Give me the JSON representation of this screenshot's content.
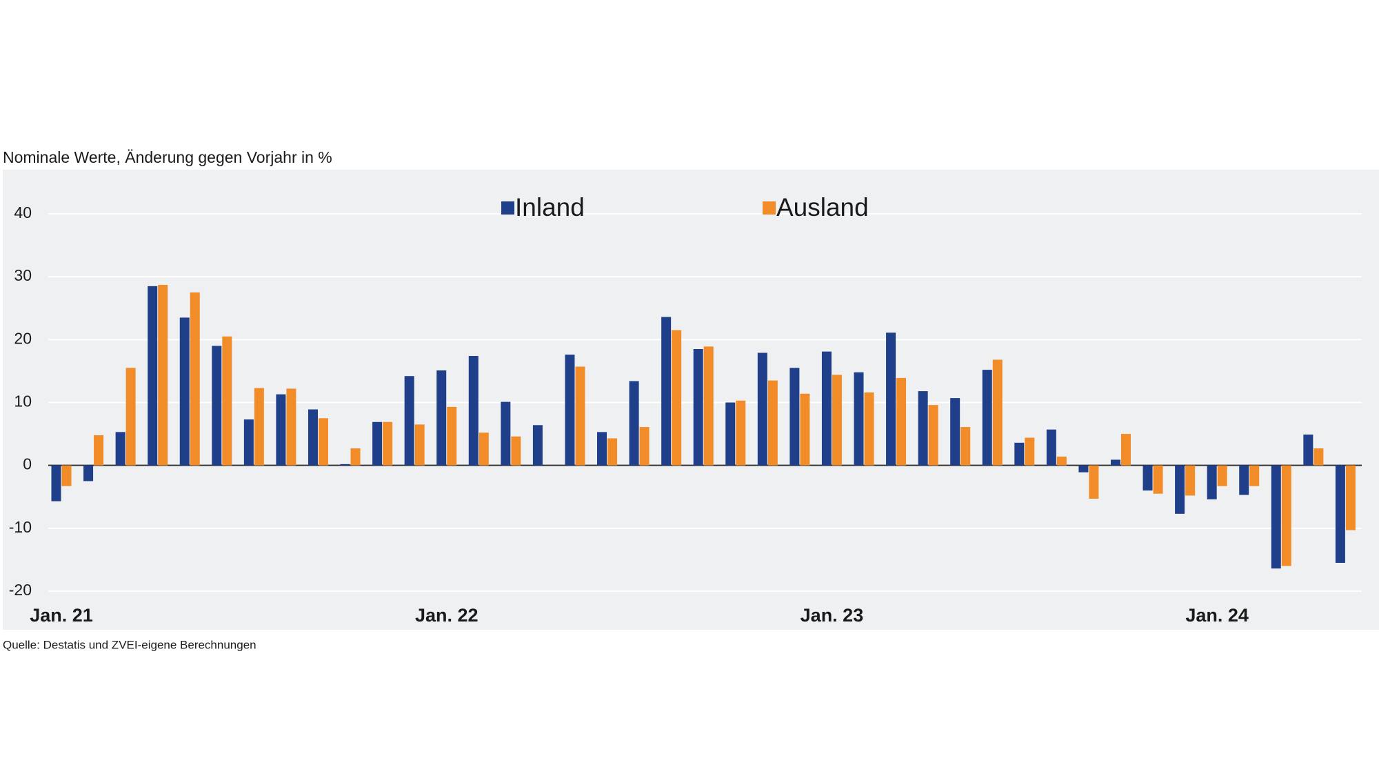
{
  "chart_data": {
    "type": "bar",
    "subtitle": "Nominale Werte, Änderung gegen Vorjahr in %",
    "source": "Quelle: Destatis und ZVEI-eigene Berechnungen",
    "categories": [
      "Jan. 21",
      null,
      null,
      null,
      null,
      null,
      null,
      null,
      null,
      null,
      null,
      null,
      "Jan. 22",
      null,
      null,
      null,
      null,
      null,
      null,
      null,
      null,
      null,
      null,
      null,
      "Jan. 23",
      null,
      null,
      null,
      null,
      null,
      null,
      null,
      null,
      null,
      null,
      null,
      "Jan. 24",
      null,
      null,
      null,
      null
    ],
    "series": [
      {
        "name": "Inland",
        "color": "#1f3f8a",
        "values": [
          -5.7,
          -2.5,
          5.3,
          28.5,
          23.5,
          19,
          7.3,
          11.3,
          8.9,
          0.2,
          6.9,
          14.2,
          15.1,
          17.4,
          10.1,
          6.4,
          17.6,
          5.3,
          13.4,
          23.6,
          18.5,
          10,
          17.9,
          15.5,
          18.1,
          14.8,
          21.1,
          11.8,
          10.7,
          15.2,
          3.6,
          5.7,
          -1.1,
          0.9,
          -4,
          -7.7,
          -5.4,
          -4.7,
          -16.4,
          4.9,
          -15.5
        ]
      },
      {
        "name": "Ausland",
        "color": "#f28c28",
        "values": [
          -3.3,
          4.8,
          15.5,
          28.7,
          27.5,
          20.5,
          12.3,
          12.2,
          7.5,
          2.7,
          6.9,
          6.5,
          9.3,
          5.2,
          4.6,
          0,
          15.7,
          4.3,
          6.1,
          21.5,
          18.9,
          10.3,
          13.5,
          11.4,
          14.4,
          11.6,
          13.9,
          9.6,
          6.1,
          16.8,
          4.4,
          1.4,
          -5.3,
          5.0,
          -4.5,
          -4.8,
          -3.3,
          -3.3,
          -16,
          2.7,
          -10.3
        ]
      }
    ],
    "ylim": [
      -20,
      40
    ],
    "yticks": [
      -20,
      -10,
      0,
      10,
      20,
      30,
      40
    ],
    "grid": true
  }
}
